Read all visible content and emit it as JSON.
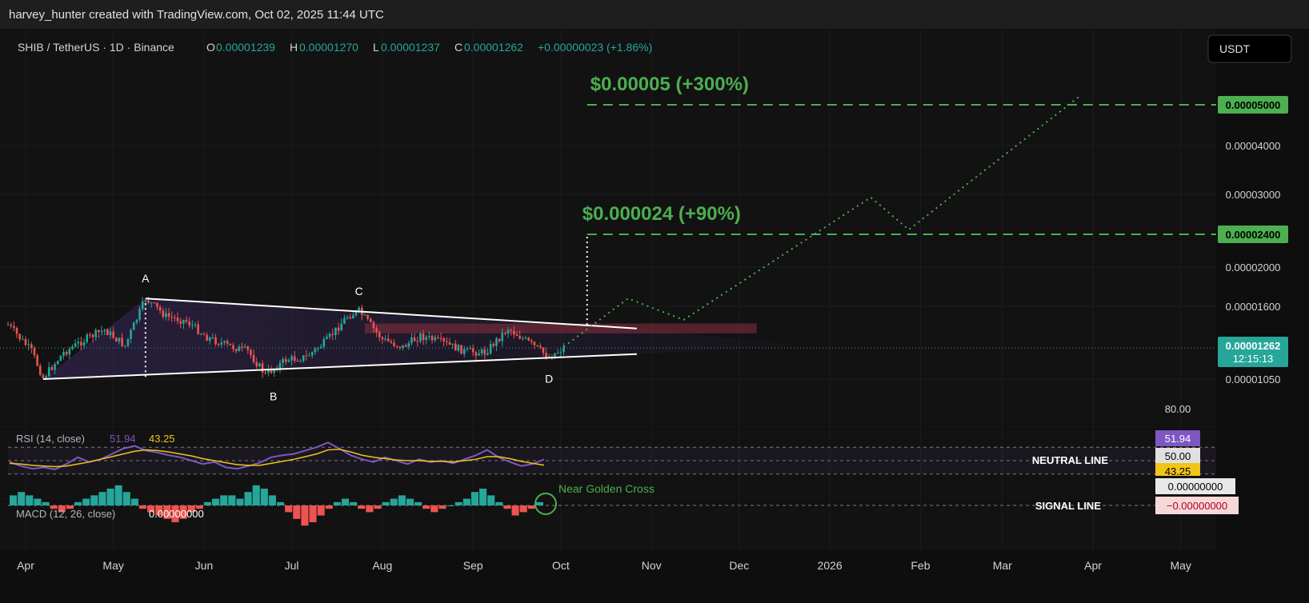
{
  "header": {
    "attribution": "harvey_hunter created with TradingView.com, Oct 02, 2025 11:44 UTC"
  },
  "legend": {
    "symbol": "SHIB / TetherUS · 1D · Binance",
    "o_label": "O",
    "o_value": "0.00001239",
    "h_label": "H",
    "h_value": "0.00001270",
    "l_label": "L",
    "l_value": "0.00001237",
    "c_label": "C",
    "c_value": "0.00001262",
    "change": "+0.00000023 (+1.86%)"
  },
  "currency_button": "USDT",
  "colors": {
    "up": "#26a69a",
    "down": "#ef5350",
    "target": "#4caf50",
    "wedge": "#ffffff",
    "rsi": "#7e57c2",
    "rsi_ma": "#f0c419",
    "panel_bg": "#121212",
    "grid": "#1c1c1c"
  },
  "chart_data": [
    {
      "type": "candlestick",
      "title": "SHIB / TetherUS · 1D · Binance",
      "y_axis_ticks": [
        "0.00005000",
        "0.00004000",
        "0.00003000",
        "0.00002400",
        "0.00002000",
        "0.00001600",
        "0.00001262",
        "0.00001050"
      ],
      "y_axis_values": [
        5e-05,
        4e-05,
        3e-05,
        2.4e-05,
        2e-05,
        1.6e-05,
        1.262e-05,
        1.05e-05
      ],
      "highlighted_ticks": [
        "0.00005000",
        "0.00002400"
      ],
      "x_axis_ticks": [
        "Apr",
        "May",
        "Jun",
        "Jul",
        "Aug",
        "Sep",
        "Oct",
        "Nov",
        "Dec",
        "2026",
        "Feb",
        "Mar",
        "Apr",
        "May"
      ],
      "current_price": {
        "label": "0.00001262",
        "countdown": "12:15:13"
      },
      "price_path": [
        {
          "date": "2025-03-26",
          "price": 1.45e-05
        },
        {
          "date": "2025-04-03",
          "price": 1.24e-05
        },
        {
          "date": "2025-04-07",
          "price": 1.06e-05
        },
        {
          "date": "2025-04-14",
          "price": 1.23e-05
        },
        {
          "date": "2025-04-22",
          "price": 1.34e-05
        },
        {
          "date": "2025-04-28",
          "price": 1.41e-05
        },
        {
          "date": "2025-05-05",
          "price": 1.28e-05
        },
        {
          "date": "2025-05-12",
          "price": 1.68e-05
        },
        {
          "date": "2025-05-19",
          "price": 1.52e-05
        },
        {
          "date": "2025-05-26",
          "price": 1.48e-05
        },
        {
          "date": "2025-06-02",
          "price": 1.35e-05
        },
        {
          "date": "2025-06-09",
          "price": 1.28e-05
        },
        {
          "date": "2025-06-16",
          "price": 1.24e-05
        },
        {
          "date": "2025-06-22",
          "price": 1.08e-05
        },
        {
          "date": "2025-06-29",
          "price": 1.18e-05
        },
        {
          "date": "2025-07-06",
          "price": 1.2e-05
        },
        {
          "date": "2025-07-13",
          "price": 1.32e-05
        },
        {
          "date": "2025-07-20",
          "price": 1.52e-05
        },
        {
          "date": "2025-07-24",
          "price": 1.56e-05
        },
        {
          "date": "2025-08-01",
          "price": 1.33e-05
        },
        {
          "date": "2025-08-08",
          "price": 1.27e-05
        },
        {
          "date": "2025-08-14",
          "price": 1.36e-05
        },
        {
          "date": "2025-08-22",
          "price": 1.3e-05
        },
        {
          "date": "2025-08-29",
          "price": 1.24e-05
        },
        {
          "date": "2025-09-05",
          "price": 1.23e-05
        },
        {
          "date": "2025-09-13",
          "price": 1.42e-05
        },
        {
          "date": "2025-09-21",
          "price": 1.29e-05
        },
        {
          "date": "2025-09-27",
          "price": 1.2e-05
        },
        {
          "date": "2025-10-02",
          "price": 1.262e-05
        }
      ],
      "point_labels": [
        {
          "label": "A",
          "date": "2025-05-12",
          "price": 1.68e-05
        },
        {
          "label": "B",
          "date": "2025-06-22",
          "price": 1.08e-05
        },
        {
          "label": "C",
          "date": "2025-07-24",
          "price": 1.56e-05
        },
        {
          "label": "D",
          "date": "2025-09-27",
          "price": 1.2e-05
        }
      ],
      "wedge_upper": [
        {
          "date": "2025-05-12",
          "price": 1.68e-05
        },
        {
          "date": "2025-10-27",
          "price": 1.42e-05
        }
      ],
      "wedge_lower": [
        {
          "date": "2025-04-07",
          "price": 1.05e-05
        },
        {
          "date": "2025-10-27",
          "price": 1.22e-05
        }
      ],
      "resistance_zone": {
        "start": "2025-07-26",
        "end": "2025-12-07",
        "low": 1.38e-05,
        "high": 1.46e-05
      },
      "projection": [
        {
          "date": "2025-10-02",
          "price": 1.27e-05
        },
        {
          "date": "2025-10-24",
          "price": 1.68e-05
        },
        {
          "date": "2025-11-12",
          "price": 1.49e-05
        },
        {
          "date": "2026-01-15",
          "price": 2.955e-05
        },
        {
          "date": "2026-01-28",
          "price": 2.47e-05
        },
        {
          "date": "2026-03-28",
          "price": 5.24e-05
        }
      ],
      "measured_move": {
        "date": "2025-10-10",
        "from": 1.45e-05,
        "to": 2.4e-05
      },
      "targets": [
        {
          "label": "$0.000024 (+90%)",
          "price": 2.4e-05,
          "start": "2025-10-10"
        },
        {
          "label": "$0.00005 (+300%)",
          "price": 5e-05,
          "start": "2025-10-10"
        }
      ]
    },
    {
      "type": "line",
      "title": "RSI (14, close)",
      "values_label": [
        "51.94",
        "43.25"
      ],
      "series": [
        {
          "name": "RSI",
          "last": 51.94,
          "values": [
            48,
            42,
            38,
            40,
            37,
            45,
            55,
            48,
            52,
            60,
            68,
            72,
            65,
            62,
            58,
            55,
            50,
            45,
            48,
            40,
            38,
            42,
            47,
            55,
            58,
            60,
            65,
            70,
            77,
            68,
            58,
            52,
            48,
            55,
            50,
            45,
            52,
            48,
            50,
            46,
            52,
            58,
            66,
            55,
            48,
            42,
            45,
            51.94
          ]
        },
        {
          "name": "RSI MA",
          "last": 43.25,
          "values": [
            46,
            45,
            43,
            42,
            41,
            42,
            45,
            48,
            52,
            56,
            60,
            64,
            66,
            65,
            63,
            60,
            57,
            53,
            50,
            47,
            44,
            43,
            43,
            46,
            49,
            52,
            56,
            60,
            66,
            67,
            63,
            58,
            55,
            53,
            51,
            50,
            50,
            49,
            49,
            48,
            50,
            52,
            56,
            56,
            53,
            49,
            46,
            43.25
          ]
        }
      ],
      "ticks": [
        "80.00",
        "51.94",
        "50.00",
        "43.25"
      ],
      "annotations": [
        "NEUTRAL LINE"
      ],
      "levels": [
        70,
        50,
        30
      ]
    },
    {
      "type": "bar",
      "title": "MACD (12, 26, close)",
      "value_label": "0.00000000",
      "ticks": [
        "0.00000000",
        "−0.00000000"
      ],
      "annotations": [
        "SIGNAL LINE",
        "Near Golden Cross"
      ],
      "histogram": [
        3,
        4,
        3,
        2,
        1,
        -1,
        -2,
        -1,
        1,
        2,
        3,
        4,
        5,
        6,
        4,
        2,
        -1,
        -2,
        -3,
        -4,
        -5,
        -4,
        -2,
        -1,
        1,
        2,
        3,
        3,
        2,
        4,
        6,
        5,
        3,
        1,
        -2,
        -4,
        -6,
        -5,
        -3,
        -1,
        1,
        2,
        1,
        -1,
        -2,
        -1,
        1,
        2,
        3,
        2,
        1,
        -1,
        -2,
        -1,
        0,
        1,
        2,
        4,
        5,
        3,
        1,
        -1,
        -3,
        -2,
        -1,
        1
      ]
    }
  ]
}
